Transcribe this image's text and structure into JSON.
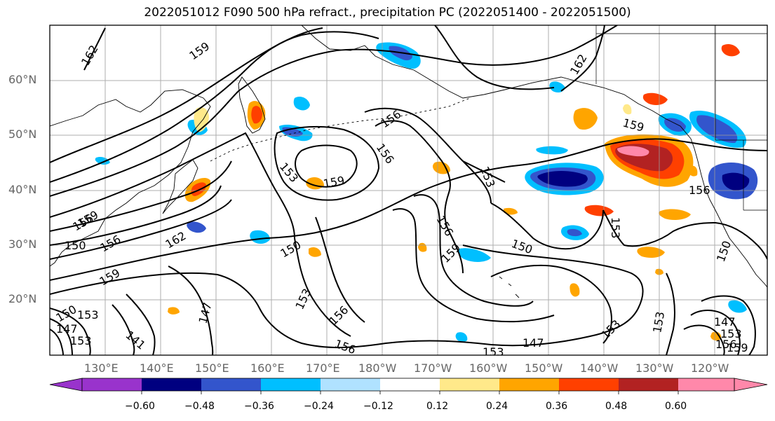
{
  "title": "2022051012 F090 500 hPa refract., precipitation PC (2022051400 - 2022051500)",
  "lat_labels": [
    "60°N",
    "50°N",
    "40°N",
    "30°N",
    "20°N"
  ],
  "lon_labels": [
    "130°E",
    "140°E",
    "150°E",
    "160°E",
    "170°E",
    "180°W",
    "170°W",
    "160°W",
    "150°W",
    "140°W",
    "130°W",
    "120°W"
  ],
  "contour_labels": [
    "162",
    "159",
    "162",
    "156",
    "156",
    "153",
    "159",
    "153",
    "159",
    "156",
    "153",
    "150",
    "156",
    "162",
    "150",
    "159",
    "156",
    "159",
    "150",
    "153",
    "147",
    "153",
    "156",
    "141",
    "153",
    "156",
    "159",
    "153",
    "156",
    "147",
    "153",
    "150",
    "147",
    "153",
    "150",
    "147",
    "153",
    "156",
    "159"
  ],
  "colorbar": {
    "labels": [
      "−0.60",
      "−0.48",
      "−0.36",
      "−0.24",
      "−0.12",
      "0.12",
      "0.24",
      "0.36",
      "0.48",
      "0.60"
    ],
    "colors": [
      "#9933cc",
      "#000080",
      "#3355cc",
      "#00bfff",
      "#b0e2ff",
      "#ffffff",
      "#ffe98a",
      "#ffa500",
      "#ff4000",
      "#b22222",
      "#ff88aa"
    ]
  }
}
